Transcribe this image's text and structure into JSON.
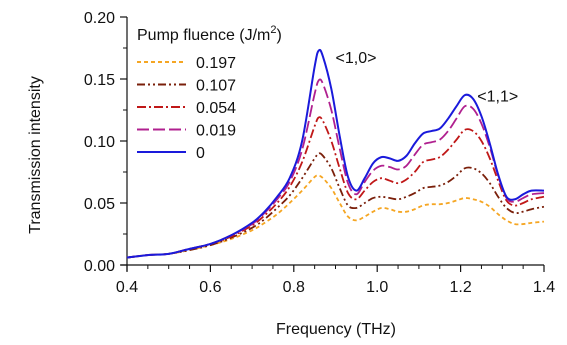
{
  "chart_data": {
    "type": "line",
    "title": "",
    "xlabel": "Frequency (THz)",
    "ylabel": "Transmission intensity",
    "xlim": [
      0.4,
      1.4
    ],
    "ylim": [
      0.0,
      0.2
    ],
    "x_ticks": [
      "0.4",
      "0.6",
      "0.8",
      "1.0",
      "1.2",
      "1.4"
    ],
    "y_ticks": [
      "0.00",
      "0.05",
      "0.10",
      "0.15",
      "0.20"
    ],
    "grid": false,
    "legend": {
      "title_main": "Pump fluence (J/m",
      "title_sup": "2",
      "title_end": ")",
      "placement": "top-left"
    },
    "annotations": [
      {
        "text": "<1,0>",
        "x": 0.9,
        "y": 0.163
      },
      {
        "text": "<1,1>",
        "x": 1.24,
        "y": 0.132
      }
    ],
    "x": [
      0.4,
      0.45,
      0.5,
      0.55,
      0.6,
      0.65,
      0.7,
      0.73,
      0.76,
      0.79,
      0.82,
      0.85,
      0.86,
      0.87,
      0.89,
      0.91,
      0.93,
      0.95,
      0.97,
      0.99,
      1.01,
      1.03,
      1.05,
      1.07,
      1.09,
      1.11,
      1.13,
      1.15,
      1.17,
      1.19,
      1.21,
      1.23,
      1.25,
      1.27,
      1.29,
      1.31,
      1.33,
      1.35,
      1.37,
      1.4
    ],
    "series": [
      {
        "name": "0.197",
        "color": "#f5a623",
        "dash": "4,3",
        "values": [
          0.006,
          0.008,
          0.009,
          0.012,
          0.016,
          0.021,
          0.028,
          0.034,
          0.041,
          0.05,
          0.06,
          0.071,
          0.072,
          0.07,
          0.062,
          0.05,
          0.039,
          0.036,
          0.039,
          0.043,
          0.046,
          0.045,
          0.043,
          0.043,
          0.045,
          0.048,
          0.049,
          0.049,
          0.05,
          0.052,
          0.054,
          0.053,
          0.051,
          0.047,
          0.041,
          0.036,
          0.033,
          0.033,
          0.034,
          0.035
        ]
      },
      {
        "name": "0.107",
        "color": "#7a1f0a",
        "dash": "8,3,2,3,2,3",
        "values": [
          0.006,
          0.008,
          0.009,
          0.012,
          0.016,
          0.022,
          0.03,
          0.037,
          0.046,
          0.056,
          0.07,
          0.086,
          0.09,
          0.088,
          0.078,
          0.062,
          0.048,
          0.046,
          0.05,
          0.054,
          0.055,
          0.054,
          0.053,
          0.055,
          0.058,
          0.062,
          0.063,
          0.064,
          0.067,
          0.072,
          0.078,
          0.078,
          0.074,
          0.066,
          0.055,
          0.046,
          0.042,
          0.043,
          0.045,
          0.047
        ]
      },
      {
        "name": "0.054",
        "color": "#c01818",
        "dash": "9,3,2,3",
        "values": [
          0.006,
          0.008,
          0.009,
          0.013,
          0.017,
          0.023,
          0.032,
          0.04,
          0.05,
          0.063,
          0.083,
          0.112,
          0.119,
          0.116,
          0.1,
          0.078,
          0.058,
          0.053,
          0.06,
          0.067,
          0.07,
          0.068,
          0.066,
          0.069,
          0.075,
          0.083,
          0.085,
          0.087,
          0.093,
          0.101,
          0.109,
          0.108,
          0.1,
          0.086,
          0.068,
          0.052,
          0.048,
          0.05,
          0.053,
          0.055
        ]
      },
      {
        "name": "0.019",
        "color": "#b0208f",
        "dash": "12,4",
        "values": [
          0.006,
          0.008,
          0.009,
          0.013,
          0.017,
          0.024,
          0.033,
          0.042,
          0.053,
          0.067,
          0.093,
          0.138,
          0.149,
          0.146,
          0.125,
          0.094,
          0.066,
          0.057,
          0.067,
          0.076,
          0.08,
          0.079,
          0.077,
          0.08,
          0.089,
          0.097,
          0.099,
          0.101,
          0.108,
          0.118,
          0.128,
          0.126,
          0.114,
          0.095,
          0.072,
          0.054,
          0.051,
          0.054,
          0.057,
          0.058
        ]
      },
      {
        "name": "0",
        "color": "#1a1adb",
        "dash": "",
        "values": [
          0.006,
          0.008,
          0.009,
          0.013,
          0.017,
          0.024,
          0.034,
          0.043,
          0.055,
          0.07,
          0.1,
          0.16,
          0.173,
          0.168,
          0.142,
          0.104,
          0.071,
          0.06,
          0.07,
          0.082,
          0.087,
          0.086,
          0.084,
          0.088,
          0.098,
          0.106,
          0.108,
          0.11,
          0.118,
          0.128,
          0.137,
          0.134,
          0.12,
          0.098,
          0.073,
          0.055,
          0.053,
          0.057,
          0.06,
          0.06
        ]
      }
    ]
  }
}
